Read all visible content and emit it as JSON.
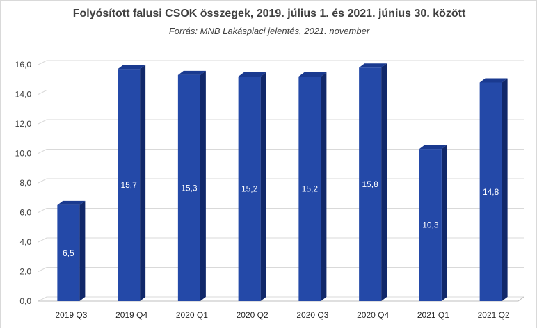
{
  "chart_data": {
    "type": "bar",
    "title": "Folyósított falusi CSOK összegek, 2019. július 1. és 2021. június 30. között",
    "subtitle": "Forrás: MNB Lakáspiaci jelentés, 2021. november",
    "categories": [
      "2019 Q3",
      "2019 Q4",
      "2020 Q1",
      "2020 Q2",
      "2020 Q3",
      "2020 Q4",
      "2021 Q1",
      "2021 Q2"
    ],
    "values": [
      6.5,
      15.7,
      15.3,
      15.2,
      15.2,
      15.8,
      10.3,
      14.8
    ],
    "data_labels": [
      "6,5",
      "15,7",
      "15,3",
      "15,2",
      "15,2",
      "15,8",
      "10,3",
      "14,8"
    ],
    "ylim": [
      0,
      16
    ],
    "y_ticks": [
      0,
      2,
      4,
      6,
      8,
      10,
      12,
      14,
      16
    ],
    "y_tick_labels": [
      "0,0",
      "2,0",
      "4,0",
      "6,0",
      "8,0",
      "10,0",
      "12,0",
      "14,0",
      "16,0"
    ],
    "xlabel": "",
    "ylabel": "",
    "grid": true,
    "legend": "none",
    "colors": {
      "bar_front": "#2449a8",
      "bar_top": "#1a3a90",
      "bar_side": "#11286a",
      "grid": "#d9d9d9",
      "axis": "#bfbfbf"
    }
  }
}
